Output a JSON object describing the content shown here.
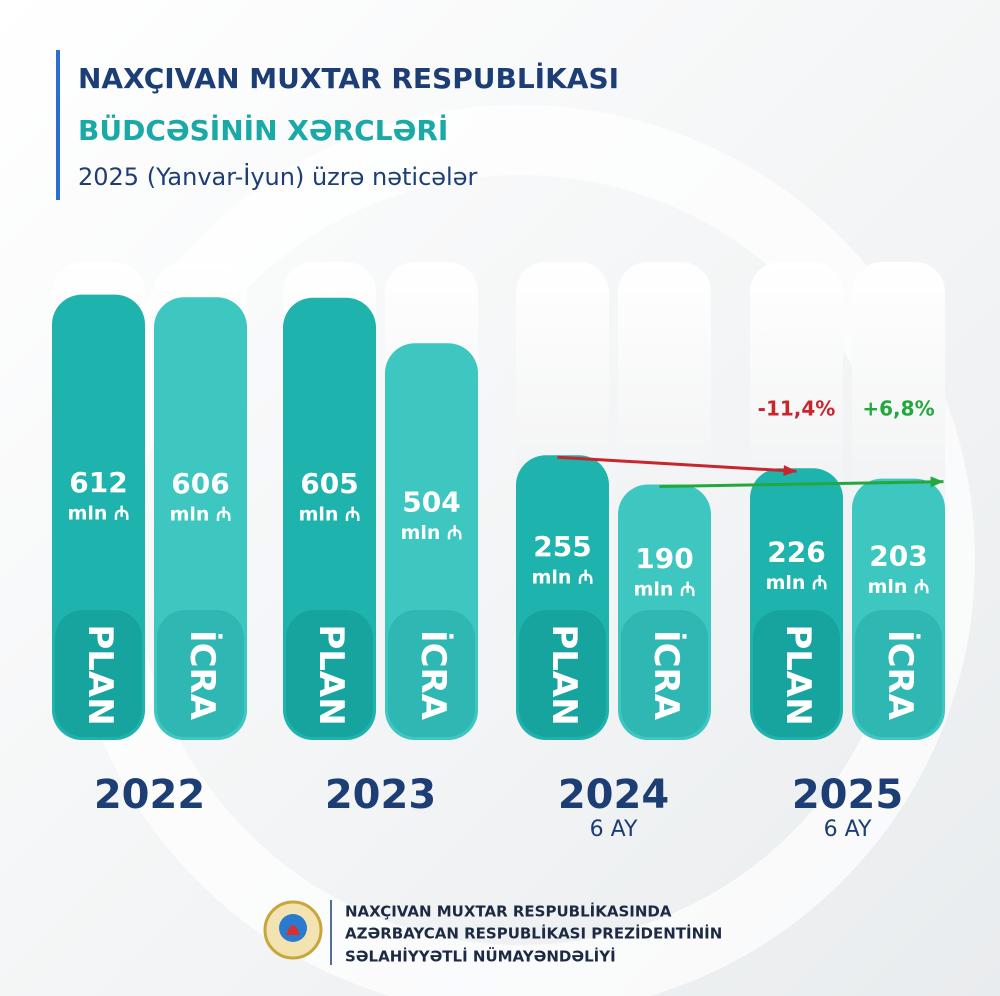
{
  "chart_data": {
    "type": "bar",
    "title": [
      "NAXÇIVAN MUXTAR RESPUBLİKASI",
      "BÜDCƏSİNİN XƏRCLƏRİ",
      "2025 (Yanvar-İyun) üzrə nəticələr"
    ],
    "categories": [
      "2022",
      "2023",
      "2024",
      "2025"
    ],
    "category_notes": [
      null,
      null,
      "6 AY",
      "6 AY"
    ],
    "unit": "mln ₼",
    "series": [
      {
        "name": "PLAN",
        "color": "#1fb3ad",
        "values": [
          612,
          605,
          255,
          226
        ]
      },
      {
        "name": "İCRA",
        "color": "#3ec6c1",
        "values": [
          606,
          504,
          190,
          203
        ]
      }
    ],
    "annotations": [
      {
        "value": -11.4,
        "label": "-11,4%",
        "color": "#c8262c"
      },
      {
        "value": 6.8,
        "label": "+6,8%",
        "color": "#22a83c"
      }
    ],
    "footer": [
      "NAXÇIVAN MUXTAR RESPUBLİKASINDA",
      "AZƏRBAYCAN RESPUBLİKASI PREZİDENTİNİN",
      "SƏLAHİYYƏTLİ NÜMAYƏNDƏLİYİ"
    ]
  }
}
